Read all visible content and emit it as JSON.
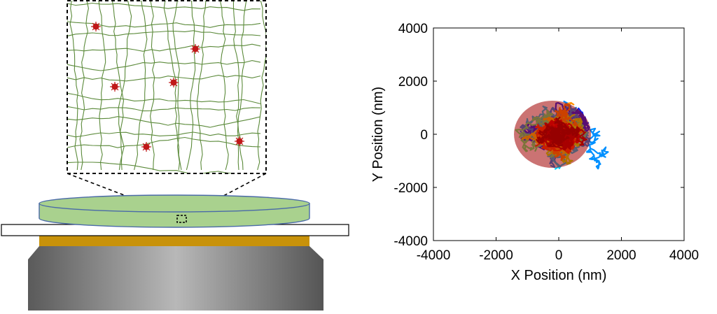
{
  "colors": {
    "mesh": "#5b8a3a",
    "particle": "#c01818",
    "gel": "#a9d18e",
    "gel_edge": "#4a6aa8",
    "stage": "#c8920a",
    "axes": "#000000",
    "track_palette": [
      "#0020ff",
      "#0090ff",
      "#00d0ff",
      "#50ff80",
      "#c0ff00",
      "#ffd000",
      "#ff9000",
      "#ff4000",
      "#e00000",
      "#b00000",
      "#8b0000"
    ]
  },
  "diagram": {
    "components": [
      "inset-mesh",
      "particles",
      "gel-dish",
      "glass-slide",
      "stage-ring",
      "objective-lens"
    ],
    "particle_count": 6
  },
  "chart_data": {
    "type": "line",
    "description_type": "multi-track trajectory plot",
    "xlabel": "X Position (nm)",
    "ylabel": "Y Position (nm)",
    "xlim": [
      -4000,
      4000
    ],
    "ylim": [
      -4000,
      4000
    ],
    "xticks": [
      "-4000",
      "-2000",
      "0",
      "2000",
      "4000"
    ],
    "yticks": [
      "4000",
      "2000",
      "0",
      "-2000",
      "-4000"
    ],
    "grid": false,
    "legend": "none",
    "track_count": 60,
    "center": [
      0,
      0
    ],
    "colormap": "jet",
    "ordering": "outer tracks blue-yellow, inner tracks red-dark red"
  }
}
